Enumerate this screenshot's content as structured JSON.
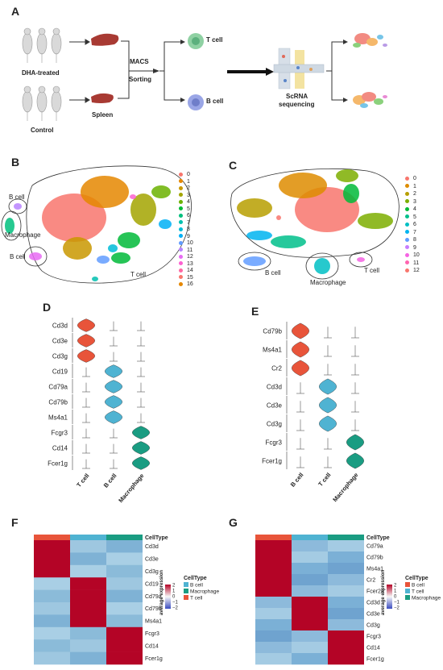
{
  "panel_labels": {
    "a": "A",
    "b": "B",
    "c": "C",
    "d": "D",
    "e": "E",
    "f": "F",
    "g": "G"
  },
  "panel_a": {
    "group_treated": "DHA-treated",
    "group_control": "Control",
    "spleen": "Spleen",
    "sort_line1": "MACS",
    "sort_line2": "Sorting",
    "t_cell": "T cell",
    "b_cell": "B cell",
    "seq_line1": "ScRNA",
    "seq_line2": "sequencing"
  },
  "panel_b": {
    "annotations": {
      "b_cell_top": "B cell",
      "macrophage": "Macrophage",
      "b_cell_bottom": "B cell",
      "t_cell": "T cell"
    },
    "clusters": [
      "0",
      "1",
      "2",
      "3",
      "4",
      "5",
      "6",
      "7",
      "8",
      "9",
      "10",
      "11",
      "12",
      "13",
      "14",
      "15",
      "16"
    ],
    "colors": [
      "#f8766d",
      "#e58700",
      "#c99800",
      "#a3a500",
      "#6bb100",
      "#00ba38",
      "#00bf7d",
      "#00c0af",
      "#00bcd8",
      "#00b0f6",
      "#619cff",
      "#b983ff",
      "#e76bf3",
      "#fd61d1",
      "#ff67a4",
      "#f8766d",
      "#e58700"
    ]
  },
  "panel_c": {
    "annotations": {
      "b_cell": "B cell",
      "macrophage": "Macrophage",
      "t_cell": "T cell"
    },
    "clusters": [
      "0",
      "1",
      "2",
      "3",
      "4",
      "5",
      "6",
      "7",
      "8",
      "9",
      "10",
      "11",
      "12"
    ],
    "colors": [
      "#f8766d",
      "#de8c00",
      "#b79f00",
      "#7cae00",
      "#00ba38",
      "#00c08b",
      "#00bfc4",
      "#00b4f0",
      "#619cff",
      "#c77cff",
      "#f564e3",
      "#ff64b0",
      "#f8766d"
    ]
  },
  "panel_d": {
    "genes": [
      "Cd3d",
      "Cd3e",
      "Cd3g",
      "Cd19",
      "Cd79a",
      "Cd79b",
      "Ms4a1",
      "Fcgr3",
      "Cd14",
      "Fcer1g"
    ],
    "groups": [
      "T cell",
      "B cell",
      "Macrophage"
    ]
  },
  "panel_e": {
    "genes": [
      "Cd79b",
      "Ms4a1",
      "Cr2",
      "Cd3d",
      "Cd3e",
      "Cd3g",
      "Fcgr3",
      "Fcer1g"
    ],
    "groups": [
      "B cell",
      "T cell",
      "Macrophage"
    ]
  },
  "panel_f": {
    "header_label": "CellType",
    "genes": [
      "Cd3d",
      "Cd3e",
      "Cd3g",
      "Cd19",
      "Cd79a",
      "Cd79b",
      "Ms4a1",
      "Fcgr3",
      "Cd14",
      "Fcer1g"
    ],
    "scale_title": "average expression",
    "scale_ticks": [
      "2",
      "1",
      "0",
      "−1",
      "−2"
    ],
    "legend_title": "CellType",
    "legend_items": [
      {
        "label": "B cell",
        "color": "#4fb3d2"
      },
      {
        "label": "Macrophage",
        "color": "#1a9c82"
      },
      {
        "label": "T cell",
        "color": "#e8543a"
      }
    ]
  },
  "panel_g": {
    "header_label": "CellType",
    "genes": [
      "Cd79a",
      "Cd79b",
      "Ms4a1",
      "Cr2",
      "Fcer2a",
      "Cd3d",
      "Cd3e",
      "Cd3g",
      "Fcgr3",
      "Cd14",
      "Fcer1g"
    ],
    "scale_title": "average expression",
    "scale_ticks": [
      "2",
      "1",
      "0",
      "−1",
      "−2"
    ],
    "legend_title": "CellType",
    "legend_items": [
      {
        "label": "B cell",
        "color": "#e8543a"
      },
      {
        "label": "T cell",
        "color": "#4fb3d2"
      },
      {
        "label": "Macrophage",
        "color": "#1a9c82"
      }
    ]
  },
  "colors": {
    "red": "#e8543a",
    "teal": "#1a9c82",
    "blue": "#4fb3d2",
    "heat_high": "#b40426",
    "heat_low": "#7fb2d5"
  }
}
